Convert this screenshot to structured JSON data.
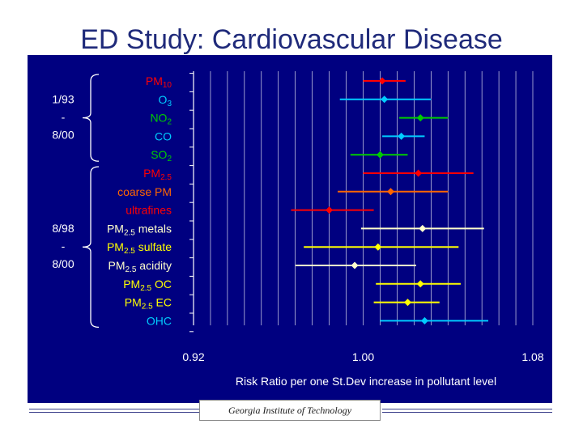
{
  "slide": {
    "title": "ED Study: Cardiovascular Disease",
    "footer": "Georgia Institute of Technology"
  },
  "groups": [
    {
      "label_lines": [
        "1/93",
        "-",
        "8/00"
      ]
    },
    {
      "label_lines": [
        "8/98",
        "-",
        "8/00"
      ]
    }
  ],
  "chart_data": {
    "type": "forest",
    "xlabel": "Risk Ratio per one St.Dev increase in pollutant level",
    "xlim": [
      0.92,
      1.08
    ],
    "xticks": [
      0.92,
      1.0,
      1.08
    ],
    "xtick_labels": [
      "0.92",
      "1.00",
      "1.08"
    ],
    "grid": true,
    "rows": [
      {
        "label": "PM",
        "sub": "10",
        "color": "#ff0000",
        "estimate": 1.009,
        "lower": 1.0,
        "upper": 1.02
      },
      {
        "label": "O",
        "sub": "3",
        "color": "#00ccff",
        "estimate": 1.01,
        "lower": 0.989,
        "upper": 1.032
      },
      {
        "label": "NO",
        "sub": "2",
        "color": "#00cc00",
        "estimate": 1.027,
        "lower": 1.017,
        "upper": 1.04
      },
      {
        "label": "CO",
        "sub": "",
        "color": "#00ccff",
        "estimate": 1.018,
        "lower": 1.009,
        "upper": 1.029
      },
      {
        "label": "SO",
        "sub": "2",
        "color": "#00cc00",
        "estimate": 1.008,
        "lower": 0.994,
        "upper": 1.021
      },
      {
        "label": "PM",
        "sub": "2.5",
        "color": "#ff0000",
        "estimate": 1.026,
        "lower": 1.0,
        "upper": 1.052
      },
      {
        "label": "coarse PM",
        "sub": "",
        "color": "#ff6600",
        "estimate": 1.013,
        "lower": 0.988,
        "upper": 1.04
      },
      {
        "label": "ultrafines",
        "sub": "",
        "color": "#ff0000",
        "estimate": 0.984,
        "lower": 0.966,
        "upper": 1.005
      },
      {
        "label": "PM",
        "sub": "2.5",
        "suffix": " metals",
        "color": "#ffffcc",
        "estimate": 1.028,
        "lower": 0.999,
        "upper": 1.057
      },
      {
        "label": "PM",
        "sub": "2.5",
        "suffix": " sulfate",
        "color": "#ffff00",
        "estimate": 1.007,
        "lower": 0.972,
        "upper": 1.045
      },
      {
        "label": "PM",
        "sub": "2.5",
        "suffix": " acidity",
        "color": "#ffffcc",
        "estimate": 0.996,
        "lower": 0.968,
        "upper": 1.025
      },
      {
        "label": "PM",
        "sub": "2.5",
        "suffix": " OC",
        "color": "#ffff00",
        "estimate": 1.027,
        "lower": 1.006,
        "upper": 1.046
      },
      {
        "label": "PM",
        "sub": "2.5",
        "suffix": " EC",
        "color": "#ffff00",
        "estimate": 1.021,
        "lower": 1.005,
        "upper": 1.036
      },
      {
        "label": "OHC",
        "sub": "",
        "color": "#00ccff",
        "estimate": 1.029,
        "lower": 1.008,
        "upper": 1.059
      }
    ]
  }
}
